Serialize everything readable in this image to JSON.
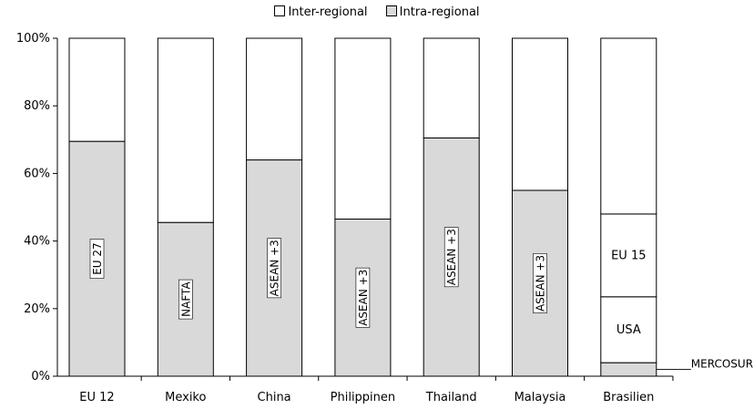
{
  "chart_data": {
    "type": "bar",
    "stacked": true,
    "title": "",
    "xlabel": "",
    "ylabel": "",
    "ylim": [
      0,
      100
    ],
    "yticks": [
      "0%",
      "20%",
      "40%",
      "60%",
      "80%",
      "100%"
    ],
    "legend_position": "top",
    "grid": false,
    "legend": [
      {
        "label": "Inter-regional",
        "color": "#ffffff"
      },
      {
        "label": "Intra-regional",
        "color": "#d9d9d9"
      }
    ],
    "categories": [
      "EU 12",
      "Mexiko",
      "China",
      "Philippinen",
      "Thailand",
      "Malaysia",
      "Brasilien"
    ],
    "stacks": [
      {
        "category": "EU 12",
        "segments": [
          {
            "series": "Intra-regional",
            "value": 69.5,
            "label": "EU 27"
          },
          {
            "series": "Inter-regional",
            "value": 30.5,
            "label": ""
          }
        ]
      },
      {
        "category": "Mexiko",
        "segments": [
          {
            "series": "Intra-regional",
            "value": 45.5,
            "label": "NAFTA"
          },
          {
            "series": "Inter-regional",
            "value": 54.5,
            "label": ""
          }
        ]
      },
      {
        "category": "China",
        "segments": [
          {
            "series": "Intra-regional",
            "value": 64,
            "label": "ASEAN +3"
          },
          {
            "series": "Inter-regional",
            "value": 36,
            "label": ""
          }
        ]
      },
      {
        "category": "Philippinen",
        "segments": [
          {
            "series": "Intra-regional",
            "value": 46.5,
            "label": "ASEAN +3"
          },
          {
            "series": "Inter-regional",
            "value": 53.5,
            "label": ""
          }
        ]
      },
      {
        "category": "Thailand",
        "segments": [
          {
            "series": "Intra-regional",
            "value": 70.5,
            "label": "ASEAN +3"
          },
          {
            "series": "Inter-regional",
            "value": 29.5,
            "label": ""
          }
        ]
      },
      {
        "category": "Malaysia",
        "segments": [
          {
            "series": "Intra-regional",
            "value": 55,
            "label": "ASEAN +3"
          },
          {
            "series": "Inter-regional",
            "value": 45,
            "label": ""
          }
        ]
      },
      {
        "category": "Brasilien",
        "segments": [
          {
            "series": "Intra-regional",
            "value": 4,
            "label": "MERCOSUR"
          },
          {
            "series": "Inter-regional",
            "value": 19.5,
            "label": "USA"
          },
          {
            "series": "Inter-regional",
            "value": 24.5,
            "label": "EU 15"
          },
          {
            "series": "Inter-regional",
            "value": 52,
            "label": ""
          }
        ]
      }
    ]
  }
}
